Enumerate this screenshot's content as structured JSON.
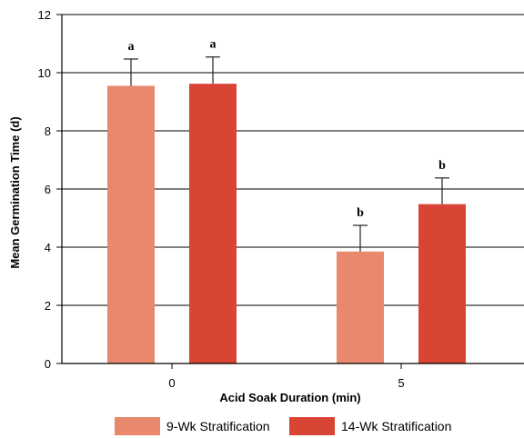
{
  "chart_data": {
    "type": "bar",
    "categories": [
      "0",
      "5"
    ],
    "series": [
      {
        "name": "9-Wk Stratification",
        "color": "#e8896e",
        "values": [
          9.55,
          3.85
        ],
        "errors": [
          0.92,
          0.9
        ],
        "labels": [
          "a",
          "b"
        ]
      },
      {
        "name": "14-Wk Stratification",
        "color": "#d94535",
        "values": [
          9.62,
          5.48
        ],
        "errors": [
          0.92,
          0.9
        ],
        "labels": [
          "a",
          "b"
        ]
      }
    ],
    "xlabel": "Acid Soak Duration (min)",
    "ylabel": "Mean Germination Time (d)",
    "ylim": [
      0,
      12
    ],
    "yticks": [
      "0",
      "2",
      "4",
      "6",
      "8",
      "10",
      "12"
    ],
    "grid": true,
    "legend_position": "bottom"
  }
}
